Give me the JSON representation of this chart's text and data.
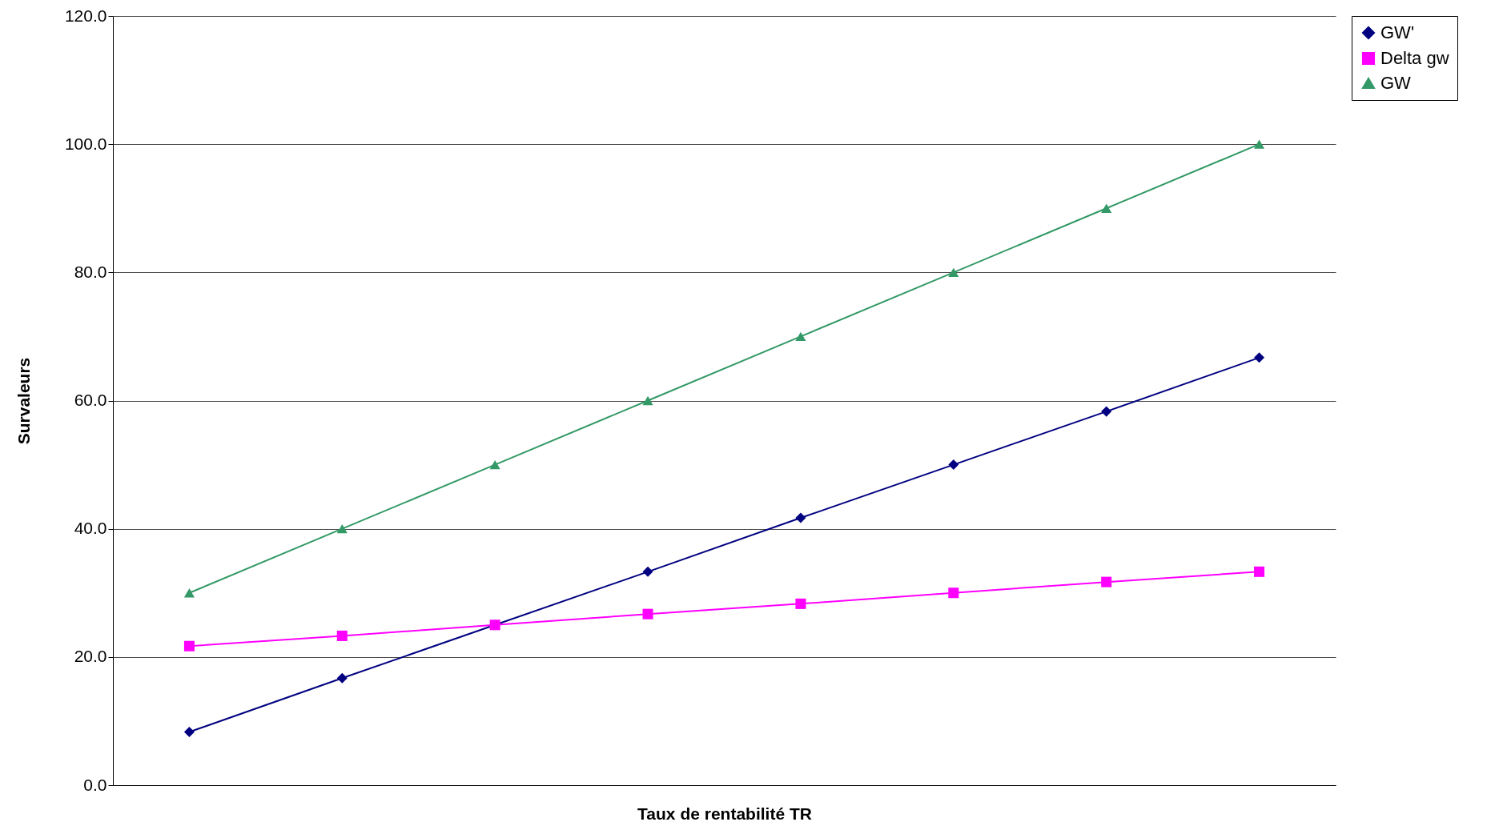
{
  "chart_data": {
    "type": "line",
    "xlabel": "Taux de rentabilité TR",
    "ylabel": "Survaleurs",
    "categories": [
      null,
      null,
      null,
      null,
      null,
      null,
      null,
      null
    ],
    "series": [
      {
        "name": "GW'",
        "color": "#000080",
        "marker": "diamond",
        "values": [
          8.3,
          16.7,
          25.0,
          33.3,
          41.7,
          50.0,
          58.3,
          66.7
        ]
      },
      {
        "name": "Delta gw",
        "color": "#ff00ff",
        "marker": "square",
        "values": [
          21.7,
          23.3,
          25.0,
          26.7,
          28.3,
          30.0,
          31.7,
          33.3
        ]
      },
      {
        "name": "GW",
        "color": "#339966",
        "marker": "triangle",
        "values": [
          30,
          40,
          50,
          60,
          70,
          80,
          90,
          100
        ]
      }
    ],
    "ylim": [
      0,
      120
    ],
    "yticks": [
      {
        "value": 0,
        "label": "0.0"
      },
      {
        "value": 20,
        "label": "20.0"
      },
      {
        "value": 40,
        "label": "40.0"
      },
      {
        "value": 60,
        "label": "60.0"
      },
      {
        "value": 80,
        "label": "80.0"
      },
      {
        "value": 100,
        "label": "100.0"
      },
      {
        "value": 120,
        "label": "120.0"
      }
    ],
    "grid": "y",
    "legend": "right",
    "tick_labels": "y"
  }
}
